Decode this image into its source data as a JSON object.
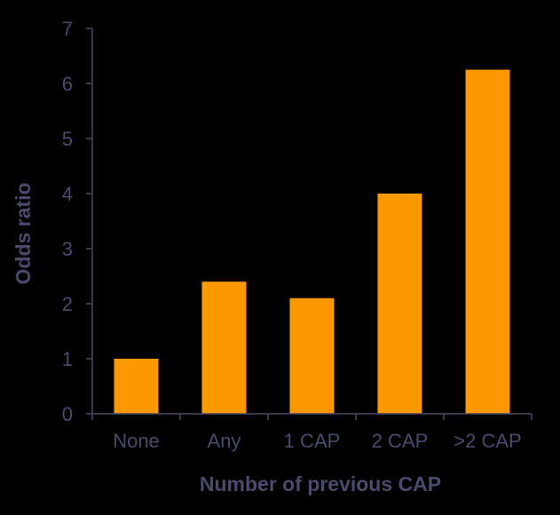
{
  "colors": {
    "background": "#000000",
    "bar": "#FF9900",
    "axis": "#4a4a66",
    "text": "#4a4a6e"
  },
  "chart_data": {
    "type": "bar",
    "title": "",
    "categories": [
      "None",
      "Any",
      "1 CAP",
      "2 CAP",
      ">2 CAP"
    ],
    "values": [
      1.0,
      2.4,
      2.1,
      4.0,
      6.25
    ],
    "xlabel": "Number of previous CAP",
    "ylabel": "Odds ratio",
    "ylim": [
      0,
      7
    ],
    "yticks": [
      "0",
      "1",
      "2",
      "3",
      "4",
      "5",
      "6",
      "7"
    ],
    "grid": false,
    "legend": "none"
  }
}
